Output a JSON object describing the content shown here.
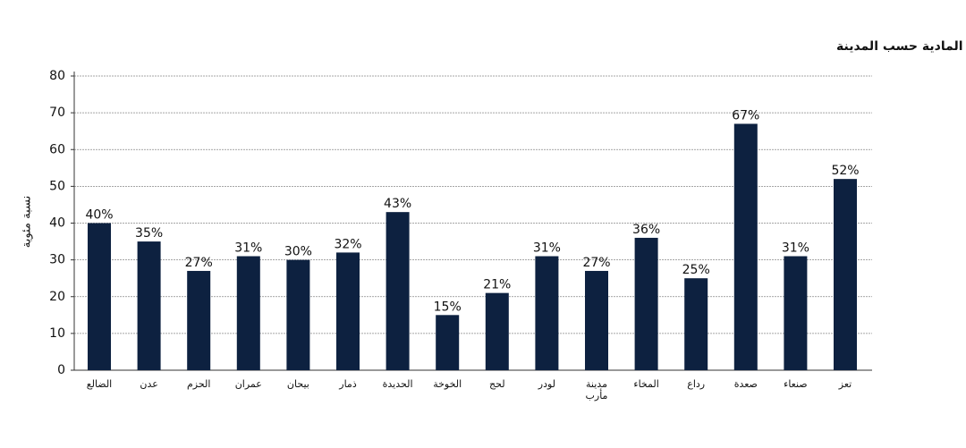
{
  "chart_data": {
    "type": "bar",
    "title": "مستويات الأضرار المادية حسب المدينة",
    "y_label": "نسبة مئوية",
    "categories": [
      "الضالع",
      "عدن",
      "الحزم",
      "عمران",
      "بيحان",
      "ذمار",
      "الحديدة",
      "الخوخة",
      "لحج",
      "لودر",
      "مدينة مأرب",
      "المخاء",
      "رداع",
      "صعدة",
      "صنعاء",
      "تعز"
    ],
    "values": [
      40,
      35,
      27,
      31,
      30,
      32,
      43,
      15,
      21,
      31,
      27,
      36,
      25,
      67,
      31,
      52
    ],
    "value_labels": [
      "40%",
      "35%",
      "27%",
      "31%",
      "30%",
      "32%",
      "43%",
      "15%",
      "21%",
      "31%",
      "27%",
      "36%",
      "25%",
      "67%",
      "31%",
      "52%"
    ],
    "color": "#0d2140",
    "ylim": [
      0,
      80
    ],
    "yticks": [
      0,
      10,
      20,
      30,
      40,
      50,
      60,
      70,
      80
    ],
    "grid": true
  }
}
